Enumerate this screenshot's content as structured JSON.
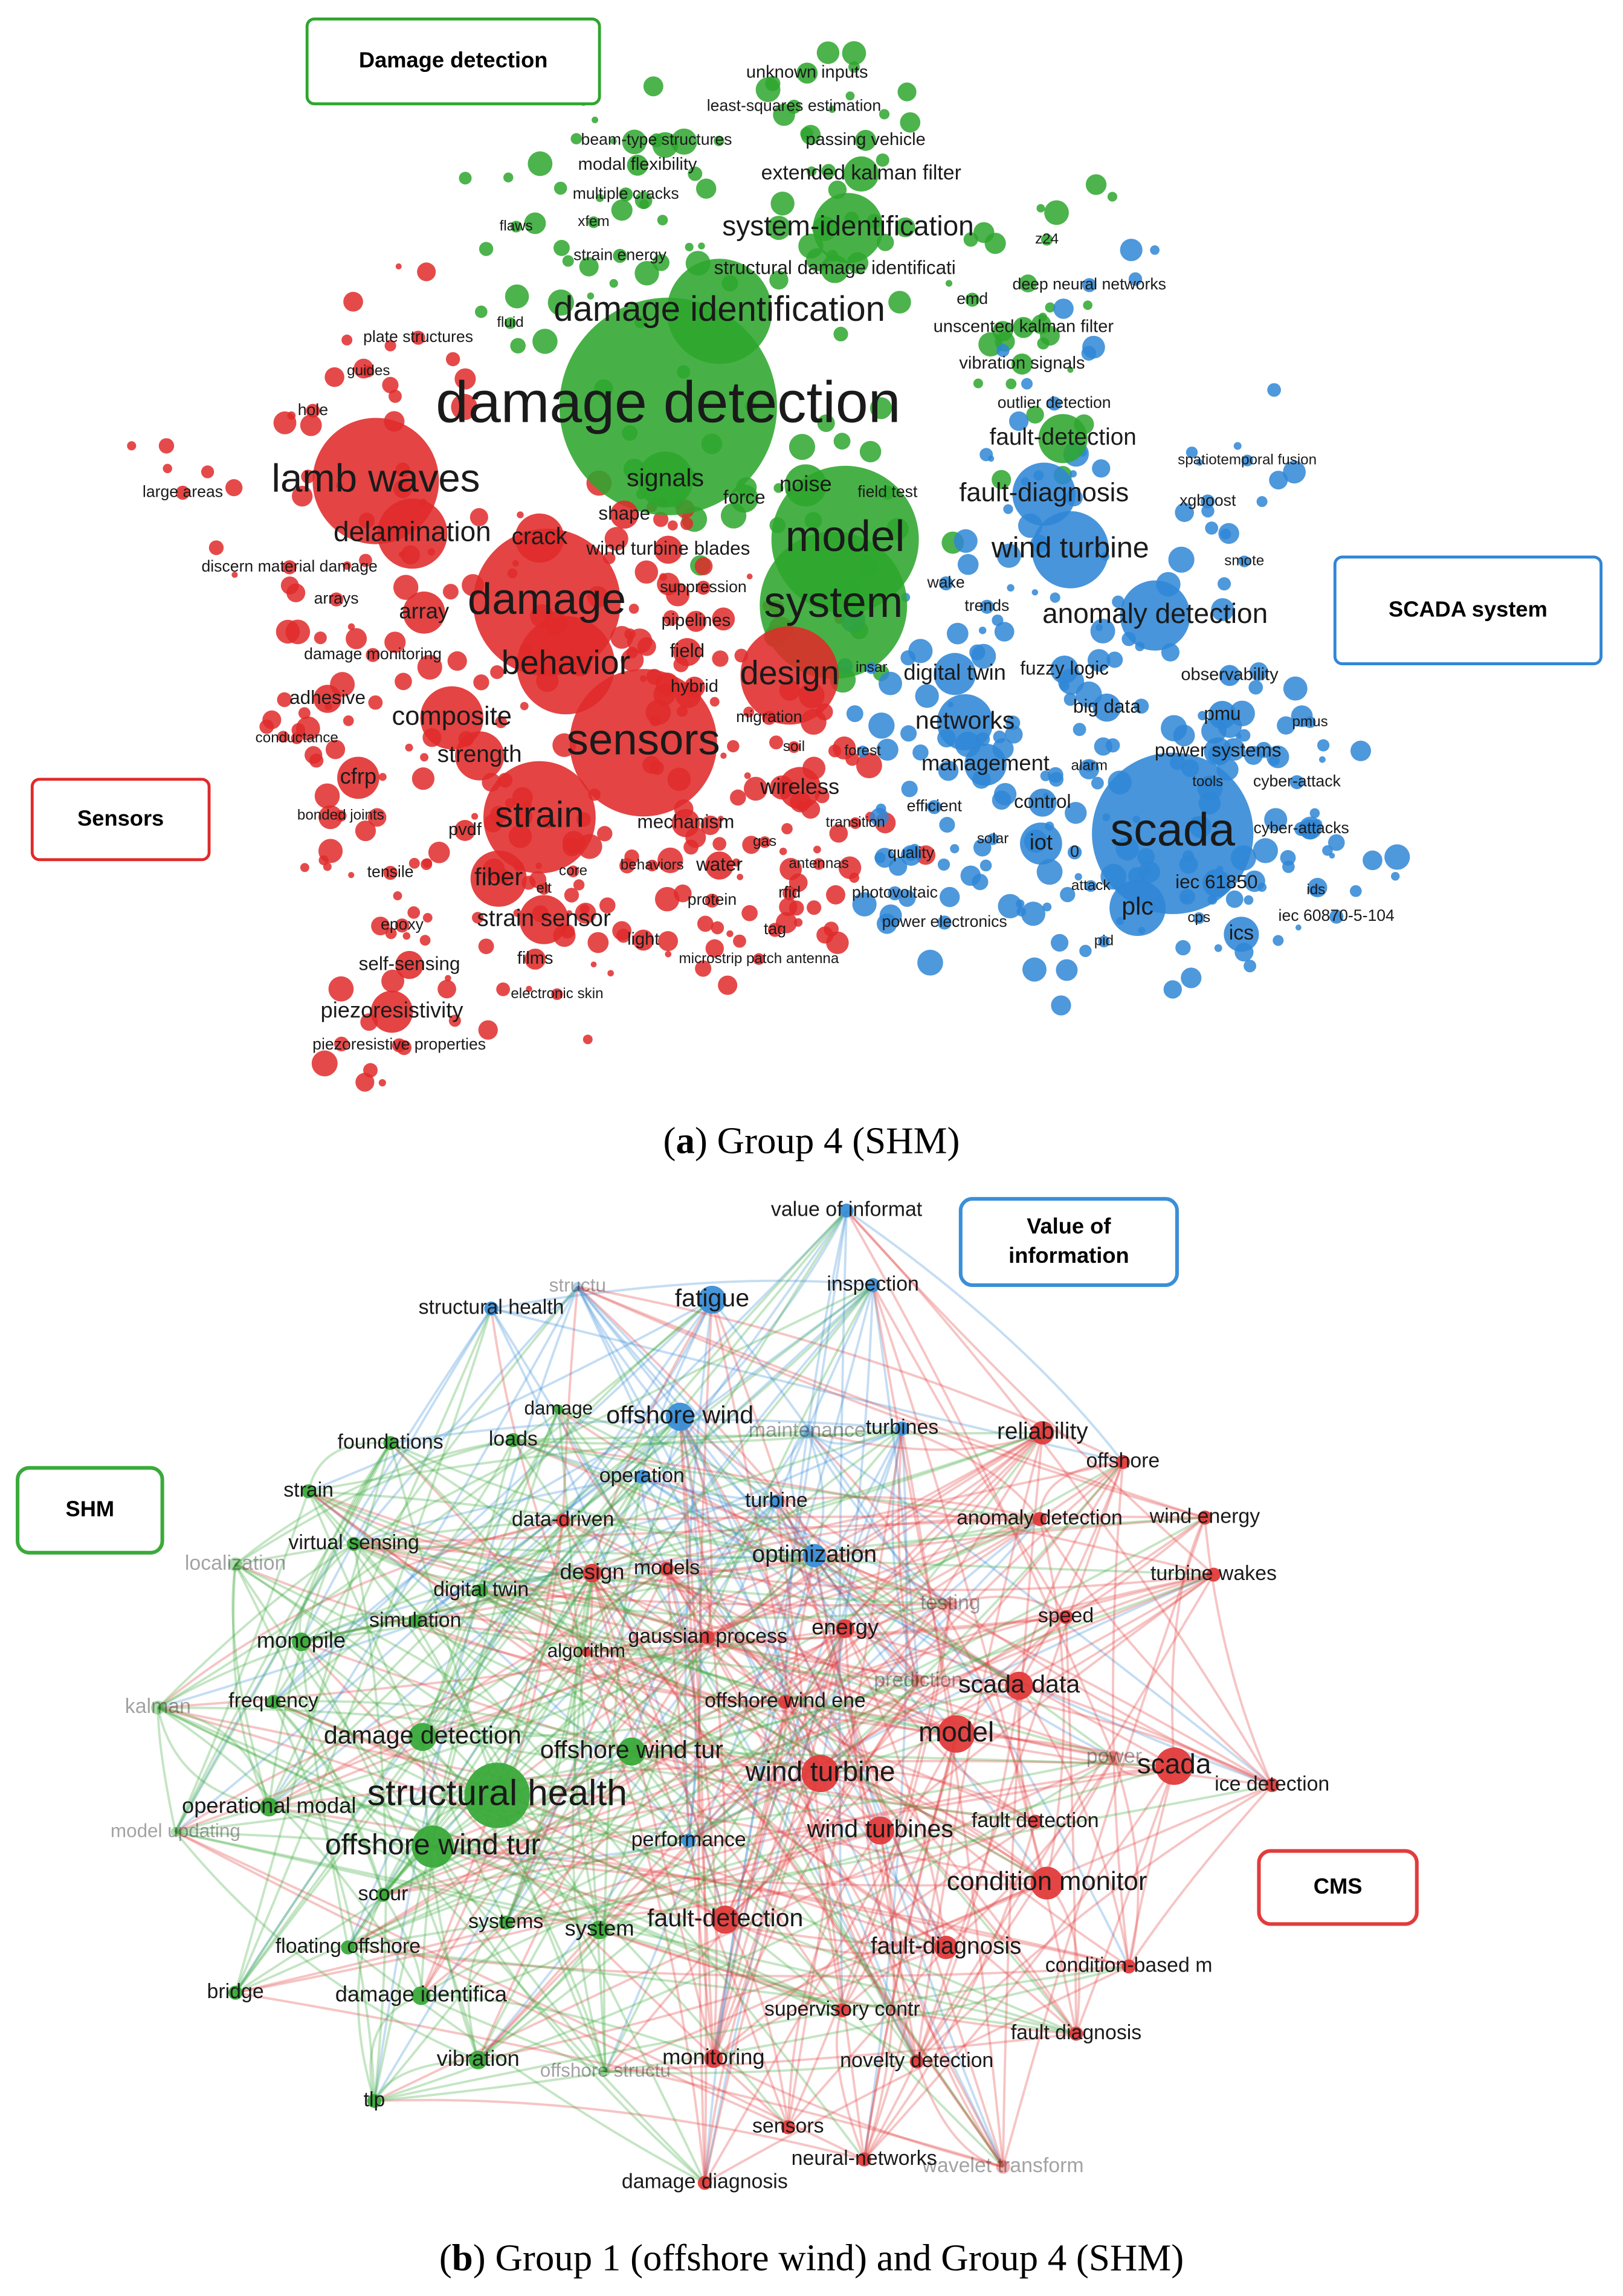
{
  "panel_a": {
    "caption": [
      "(",
      "a",
      ") Group 4 (SHM)"
    ],
    "clusters": [
      {
        "box": [
          "Damage detection"
        ],
        "color": "#2ea62e",
        "nodes": [
          "damage detection",
          "damage identification",
          "system-identification",
          "extended kalman filter",
          "passing vehicle",
          "unknown inputs",
          "least-squares estimation",
          "beam-type structures",
          "modal flexibility",
          "multiple cracks",
          "flaws",
          "xfem",
          "strain energy",
          "structural damage identificati",
          "model",
          "system",
          "signals",
          "noise",
          "force",
          "field test",
          "vibration signals",
          "unscented kalman filter",
          "emd",
          "fault-detection",
          "z24",
          "fluid"
        ]
      },
      {
        "box": [
          "Sensors"
        ],
        "color": "#e02a2a",
        "nodes": [
          "lamb waves",
          "delamination",
          "crack",
          "damage",
          "behavior",
          "sensors",
          "design",
          "strain",
          "composite",
          "strength",
          "cfrp",
          "fiber",
          "strain sensor",
          "piezoresistivity",
          "piezoresistive properties",
          "self-sensing",
          "epoxy",
          "plate structures",
          "large areas",
          "discern material damage",
          "hole",
          "guides",
          "arrays",
          "array",
          "damage monitoring",
          "adhesive",
          "conductance",
          "bonded joints",
          "tensile",
          "pvdf",
          "films",
          "electronic skin",
          "light",
          "microstrip patch antenna",
          "mechanism",
          "wireless",
          "water",
          "protein",
          "tag",
          "rfid",
          "antennas",
          "wind turbine blades",
          "shape",
          "suppression",
          "pipelines",
          "field",
          "hybrid",
          "migration",
          "soil",
          "gas",
          "core",
          "behaviors",
          "elt",
          "transition"
        ]
      },
      {
        "box": [
          "SCADA system"
        ],
        "color": "#2f86d6",
        "nodes": [
          "wind turbine",
          "fault-diagnosis",
          "anomaly detection",
          "scada",
          "digital twin",
          "fuzzy logic",
          "networks",
          "big data",
          "management",
          "power systems",
          "observability",
          "pmu",
          "iot",
          "plc",
          "ics",
          "iec 61850",
          "cyber-attack",
          "cyber-attacks",
          "iec 60870-5-104",
          "solar",
          "quality",
          "photovoltaic",
          "power electronics",
          "xgboost",
          "spatiotemporal fusion",
          "outlier detection",
          "deep neural networks",
          "smote",
          "efficient",
          "wake",
          "trends",
          "control",
          "insar",
          "forest",
          "alarm",
          "tools",
          "attack",
          "cps",
          "pid",
          "ids",
          "pmus",
          "0"
        ]
      }
    ]
  },
  "panel_b": {
    "caption": [
      "(",
      "b",
      ") Group 1 (offshore wind) and Group 4 (SHM)"
    ],
    "clusters": [
      {
        "box": [
          "Value of",
          "information"
        ],
        "color": "#3a8fd8",
        "nodes": [
          "value of informat",
          "inspection",
          "fatigue",
          "structural health",
          "offshore wind",
          "operation",
          "turbine",
          "optimization",
          "turbines",
          "maintenance",
          "performance",
          "structu"
        ]
      },
      {
        "box": [
          "CMS"
        ],
        "color": "#e23b3b",
        "nodes": [
          "reliability",
          "offshore",
          "anomaly detection",
          "wind energy",
          "turbine wakes",
          "speed",
          "scada data",
          "model",
          "scada",
          "ice detection",
          "wind turbine",
          "wind turbines",
          "fault detection",
          "condition monitor",
          "fault-diagnosis",
          "condition-based m",
          "fault diagnosis",
          "supervisory contr",
          "novelty detection",
          "monitoring",
          "sensors",
          "neural-networks",
          "damage diagnosis",
          "wavelet transform",
          "fault-detection",
          "energy",
          "offshore wind ene",
          "data-driven",
          "models",
          "design",
          "gaussian process",
          "algorithm",
          "power",
          "prediction",
          "testing"
        ]
      },
      {
        "box": [
          "SHM"
        ],
        "color": "#3aaa3a",
        "nodes": [
          "foundations",
          "loads",
          "strain",
          "virtual sensing",
          "localization",
          "digital twin",
          "simulation",
          "monopile",
          "frequency",
          "kalman",
          "damage detection",
          "offshore wind tur",
          "structural health",
          "operational modal",
          "model updating",
          "offshore wind tur",
          "scour",
          "systems",
          "system",
          "floating offshore",
          "bridge",
          "damage identifica",
          "vibration",
          "tlp",
          "damage",
          "offshore structu"
        ]
      }
    ]
  }
}
